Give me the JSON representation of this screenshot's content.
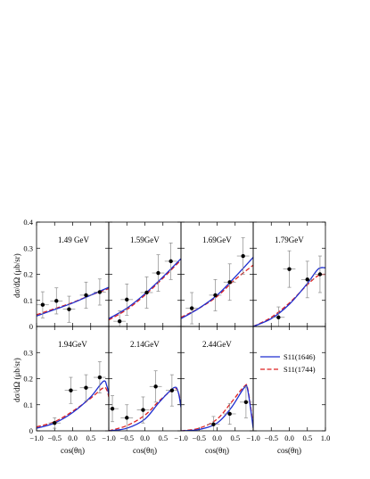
{
  "chart_data": {
    "type": "line",
    "ylabel": "dσ/dΩ (μb/sr)",
    "xlabel": "cos(θη)",
    "xlim": [
      -1.0,
      1.0
    ],
    "ylim": [
      0,
      0.4
    ],
    "x_ticks": [
      "−1.0",
      "−0.5",
      "0.0",
      "0.5",
      "1.0"
    ],
    "y_ticks": [
      "0",
      "0.1",
      "0.2",
      "0.3",
      "0.4"
    ],
    "legend": {
      "placement": "right-middle",
      "entries": [
        {
          "label": "S11(1646)",
          "base": "S",
          "sub": "11",
          "rest": "(1646)",
          "color": "#1f2fd0",
          "style": "solid"
        },
        {
          "label": "S11(1744)",
          "base": "S",
          "sub": "11",
          "rest": "(1744)",
          "color": "#dd2222",
          "style": "dashed"
        }
      ]
    },
    "panels": [
      {
        "label": "1.49 GeV",
        "points": [
          {
            "x": -0.83,
            "y": 0.083,
            "xerr": 0.17,
            "yerr": 0.05
          },
          {
            "x": -0.45,
            "y": 0.098,
            "xerr": 0.17,
            "yerr": 0.05
          },
          {
            "x": -0.1,
            "y": 0.066,
            "xerr": 0.17,
            "yerr": 0.05
          },
          {
            "x": 0.37,
            "y": 0.12,
            "xerr": 0.17,
            "yerr": 0.05
          },
          {
            "x": 0.75,
            "y": 0.132,
            "xerr": 0.17,
            "yerr": 0.05
          }
        ],
        "series": [
          {
            "name": "S11(1646)",
            "x": [
              -1.0,
              -0.5,
              0.0,
              0.5,
              1.0
            ],
            "values": [
              0.04,
              0.065,
              0.09,
              0.12,
              0.15
            ]
          },
          {
            "name": "S11(1744)",
            "x": [
              -1.0,
              -0.5,
              0.0,
              0.5,
              1.0
            ],
            "values": [
              0.045,
              0.068,
              0.092,
              0.12,
              0.145
            ]
          }
        ]
      },
      {
        "label": "1.59GeV",
        "points": [
          {
            "x": -0.7,
            "y": 0.02,
            "xerr": 0.17,
            "yerr": 0.04
          },
          {
            "x": -0.5,
            "y": 0.103,
            "xerr": 0.17,
            "yerr": 0.06
          },
          {
            "x": 0.05,
            "y": 0.13,
            "xerr": 0.17,
            "yerr": 0.06
          },
          {
            "x": 0.37,
            "y": 0.205,
            "xerr": 0.17,
            "yerr": 0.07
          },
          {
            "x": 0.72,
            "y": 0.25,
            "xerr": 0.17,
            "yerr": 0.07
          }
        ],
        "series": [
          {
            "name": "S11(1646)",
            "x": [
              -1.0,
              -0.5,
              0.0,
              0.5,
              1.0
            ],
            "values": [
              0.03,
              0.07,
              0.125,
              0.19,
              0.26
            ]
          },
          {
            "name": "S11(1744)",
            "x": [
              -1.0,
              -0.5,
              0.0,
              0.5,
              1.0
            ],
            "values": [
              0.025,
              0.065,
              0.12,
              0.185,
              0.255
            ]
          }
        ]
      },
      {
        "label": "1.69GeV",
        "points": [
          {
            "x": -0.7,
            "y": 0.07,
            "xerr": 0.17,
            "yerr": 0.06
          },
          {
            "x": -0.05,
            "y": 0.12,
            "xerr": 0.17,
            "yerr": 0.06
          },
          {
            "x": 0.35,
            "y": 0.17,
            "xerr": 0.17,
            "yerr": 0.07
          },
          {
            "x": 0.72,
            "y": 0.27,
            "xerr": 0.17,
            "yerr": 0.07
          }
        ],
        "series": [
          {
            "name": "S11(1646)",
            "x": [
              -1.0,
              -0.5,
              0.0,
              0.5,
              1.0
            ],
            "values": [
              0.03,
              0.07,
              0.12,
              0.19,
              0.265
            ]
          },
          {
            "name": "S11(1744)",
            "x": [
              -1.0,
              -0.5,
              0.0,
              0.5,
              1.0
            ],
            "values": [
              0.035,
              0.07,
              0.115,
              0.18,
              0.235
            ]
          }
        ]
      },
      {
        "label": "1.79GeV",
        "points": [
          {
            "x": -0.3,
            "y": 0.035,
            "xerr": 0.17,
            "yerr": 0.04
          },
          {
            "x": 0.0,
            "y": 0.22,
            "xerr": 0.17,
            "yerr": 0.07
          },
          {
            "x": 0.5,
            "y": 0.18,
            "xerr": 0.17,
            "yerr": 0.07
          },
          {
            "x": 0.85,
            "y": 0.2,
            "xerr": 0.17,
            "yerr": 0.07
          }
        ],
        "series": [
          {
            "name": "S11(1646)",
            "x": [
              -1.0,
              -0.5,
              0.0,
              0.5,
              0.8,
              1.0
            ],
            "values": [
              0.0,
              0.03,
              0.085,
              0.165,
              0.22,
              0.225
            ]
          },
          {
            "name": "S11(1744)",
            "x": [
              -1.0,
              -0.5,
              0.0,
              0.5,
              0.8,
              1.0
            ],
            "values": [
              0.0,
              0.035,
              0.09,
              0.16,
              0.195,
              0.2
            ]
          }
        ]
      },
      {
        "label": "1.94GeV",
        "points": [
          {
            "x": -0.5,
            "y": 0.03,
            "xerr": 0.17,
            "yerr": 0.02
          },
          {
            "x": -0.05,
            "y": 0.155,
            "xerr": 0.17,
            "yerr": 0.05
          },
          {
            "x": 0.37,
            "y": 0.165,
            "xerr": 0.17,
            "yerr": 0.05
          },
          {
            "x": 0.75,
            "y": 0.205,
            "xerr": 0.17,
            "yerr": 0.06
          }
        ],
        "series": [
          {
            "name": "S11(1646)",
            "x": [
              -1.0,
              -0.5,
              0.0,
              0.5,
              0.85,
              0.95,
              1.0
            ],
            "values": [
              0.01,
              0.03,
              0.07,
              0.13,
              0.19,
              0.17,
              0.14
            ]
          },
          {
            "name": "S11(1744)",
            "x": [
              -1.0,
              -0.5,
              0.0,
              0.5,
              0.85,
              0.95,
              1.0
            ],
            "values": [
              0.015,
              0.035,
              0.075,
              0.125,
              0.165,
              0.155,
              0.13
            ]
          }
        ]
      },
      {
        "label": "2.14GeV",
        "points": [
          {
            "x": -0.9,
            "y": 0.085,
            "xerr": 0.17,
            "yerr": 0.05
          },
          {
            "x": -0.5,
            "y": 0.05,
            "xerr": 0.17,
            "yerr": 0.05
          },
          {
            "x": -0.05,
            "y": 0.08,
            "xerr": 0.17,
            "yerr": 0.05
          },
          {
            "x": 0.3,
            "y": 0.17,
            "xerr": 0.17,
            "yerr": 0.06
          },
          {
            "x": 0.75,
            "y": 0.155,
            "xerr": 0.17,
            "yerr": 0.06
          }
        ],
        "series": [
          {
            "name": "S11(1646)",
            "x": [
              -1.0,
              -0.5,
              0.0,
              0.4,
              0.8,
              0.92,
              1.0
            ],
            "values": [
              0.0,
              0.01,
              0.045,
              0.11,
              0.165,
              0.15,
              0.09
            ]
          },
          {
            "name": "S11(1744)",
            "x": [
              -1.0,
              -0.5,
              0.0,
              0.4,
              0.8,
              0.92,
              1.0
            ],
            "values": [
              0.0,
              0.02,
              0.06,
              0.115,
              0.16,
              0.15,
              0.1
            ]
          }
        ]
      },
      {
        "label": "2.44GeV",
        "points": [
          {
            "x": -0.1,
            "y": 0.025,
            "xerr": 0.17,
            "yerr": 0.03
          },
          {
            "x": 0.35,
            "y": 0.065,
            "xerr": 0.17,
            "yerr": 0.04
          },
          {
            "x": 0.8,
            "y": 0.11,
            "xerr": 0.17,
            "yerr": 0.06
          }
        ],
        "series": [
          {
            "name": "S11(1646)",
            "x": [
              -1.0,
              -0.5,
              0.0,
              0.4,
              0.75,
              0.85,
              1.0
            ],
            "values": [
              0.0,
              0.005,
              0.03,
              0.09,
              0.165,
              0.155,
              0.01
            ]
          },
          {
            "name": "S11(1744)",
            "x": [
              -1.0,
              -0.5,
              0.0,
              0.4,
              0.75,
              0.85,
              1.0
            ],
            "values": [
              0.0,
              0.01,
              0.045,
              0.11,
              0.17,
              0.16,
              0.02
            ]
          }
        ]
      }
    ]
  }
}
